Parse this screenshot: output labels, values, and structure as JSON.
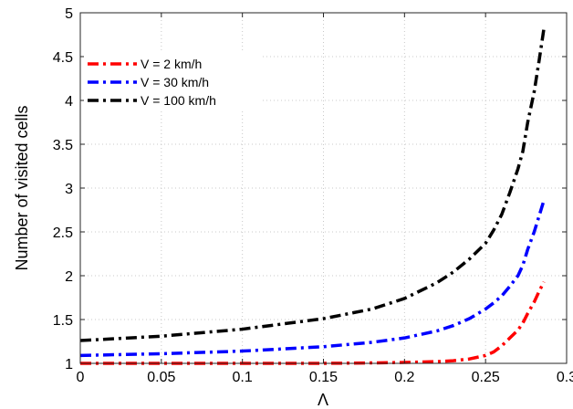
{
  "chart_data": {
    "type": "line",
    "xlabel": "Λ",
    "ylabel": "Number of visited cells",
    "xlim": [
      0,
      0.3
    ],
    "ylim": [
      1,
      5
    ],
    "xticks": [
      0,
      0.05,
      0.1,
      0.15,
      0.2,
      0.25,
      0.3
    ],
    "xtick_labels": [
      "0",
      "0.05",
      "0.1",
      "0.15",
      "0.2",
      "0.25",
      "0.3"
    ],
    "yticks": [
      1,
      1.5,
      2,
      2.5,
      3,
      3.5,
      4,
      4.5,
      5
    ],
    "ytick_labels": [
      "1",
      "1.5",
      "2",
      "2.5",
      "3",
      "3.5",
      "4",
      "4.5",
      "5"
    ],
    "grid": true,
    "legend_position": "top-left",
    "series": [
      {
        "name": "V = 2 km/h",
        "color": "#ff0000",
        "x": [
          0,
          0.05,
          0.1,
          0.15,
          0.18,
          0.2,
          0.22,
          0.23,
          0.24,
          0.25,
          0.255,
          0.26,
          0.265,
          0.27,
          0.273,
          0.276,
          0.28,
          0.283,
          0.286
        ],
        "y": [
          1.0,
          1.0,
          1.0,
          1.0,
          1.005,
          1.01,
          1.02,
          1.03,
          1.05,
          1.09,
          1.13,
          1.2,
          1.29,
          1.38,
          1.46,
          1.57,
          1.7,
          1.82,
          1.93
        ]
      },
      {
        "name": "V = 30 km/h",
        "color": "#0000ff",
        "x": [
          0,
          0.05,
          0.1,
          0.15,
          0.18,
          0.2,
          0.22,
          0.23,
          0.24,
          0.25,
          0.255,
          0.26,
          0.265,
          0.27,
          0.273,
          0.276,
          0.28,
          0.283,
          0.286
        ],
        "y": [
          1.09,
          1.11,
          1.14,
          1.19,
          1.24,
          1.29,
          1.37,
          1.43,
          1.51,
          1.62,
          1.69,
          1.77,
          1.88,
          2.0,
          2.12,
          2.3,
          2.5,
          2.68,
          2.86
        ]
      },
      {
        "name": "V = 100 km/h",
        "color": "#000000",
        "x": [
          0,
          0.05,
          0.1,
          0.15,
          0.18,
          0.2,
          0.22,
          0.23,
          0.24,
          0.25,
          0.255,
          0.26,
          0.265,
          0.27,
          0.273,
          0.276,
          0.28,
          0.283,
          0.286
        ],
        "y": [
          1.26,
          1.31,
          1.39,
          1.51,
          1.62,
          1.74,
          1.92,
          2.04,
          2.19,
          2.37,
          2.52,
          2.7,
          2.95,
          3.22,
          3.42,
          3.75,
          4.1,
          4.45,
          4.82
        ]
      }
    ]
  }
}
